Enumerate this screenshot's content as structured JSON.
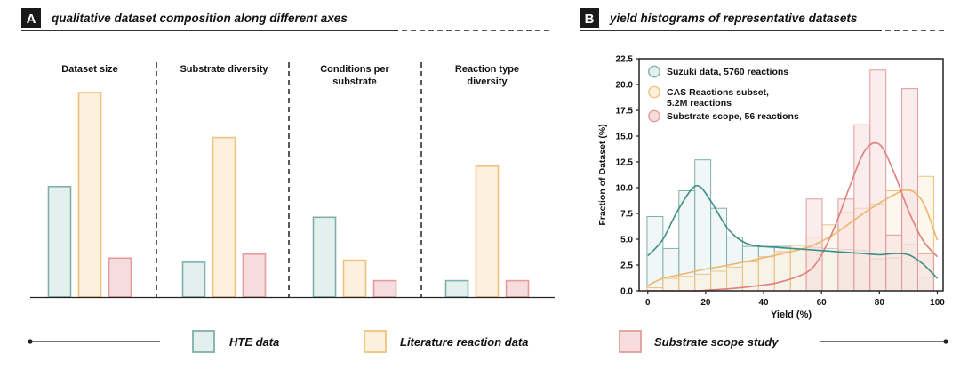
{
  "panel_a": {
    "letter": "A",
    "title": "qualitative dataset composition along different axes"
  },
  "panel_b": {
    "letter": "B",
    "title": "yield histograms of representative datasets"
  },
  "legend_bottom": {
    "hte": "HTE data",
    "literature": "Literature reaction data",
    "substrate": "Substrate scope study"
  },
  "colors": {
    "hte_fill": "#e3f0ee",
    "hte_edge": "#7fb0aa",
    "hte_line": "#3f8f86",
    "lit_fill": "#fdf0dc",
    "lit_edge": "#f0c27e",
    "lit_line": "#eeb56c",
    "sub_fill": "#f6dcdc",
    "sub_edge": "#e39b9b",
    "sub_line": "#e07f7f"
  },
  "chart_data": [
    {
      "type": "bar",
      "categories": [
        "Dataset size",
        "Substrate diversity",
        "Conditions per substrate",
        "Reaction type diversity"
      ],
      "category_lines": [
        [
          "Dataset size"
        ],
        [
          "Substrate diversity"
        ],
        [
          "Conditions per",
          "substrate"
        ],
        [
          "Reaction type",
          "diversity"
        ]
      ],
      "series": [
        {
          "name": "HTE data",
          "values": [
            0.54,
            0.17,
            0.39,
            0.08
          ]
        },
        {
          "name": "Literature reaction data",
          "values": [
            1.0,
            0.78,
            0.18,
            0.64
          ]
        },
        {
          "name": "Substrate scope study",
          "values": [
            0.19,
            0.21,
            0.08,
            0.08
          ]
        }
      ],
      "ylim": [
        0,
        1
      ]
    },
    {
      "type": "bar",
      "xlabel": "Yield (%)",
      "ylabel": "Fraction of Dataset (%)",
      "xlim": [
        -3,
        102
      ],
      "ylim": [
        0,
        22.5
      ],
      "xticks": [
        0,
        20,
        40,
        60,
        80,
        100
      ],
      "yticks": [
        "0.0",
        "2.5",
        "5.0",
        "7.5",
        "10.0",
        "12.5",
        "15.0",
        "17.5",
        "20.0",
        "22.5"
      ],
      "bin_width": 5.5,
      "bin_centers": [
        2.5,
        8,
        13.5,
        19,
        24.5,
        30,
        35.5,
        41,
        46.5,
        52,
        57.5,
        63,
        68.5,
        74,
        79.5,
        85,
        90.5,
        96
      ],
      "series": [
        {
          "name": "Suzuki data, 5760 reactions",
          "legend": [
            "Suzuki data, 5760 reactions"
          ],
          "values": [
            7.2,
            4.1,
            9.7,
            12.7,
            8.0,
            5.2,
            4.3,
            4.3,
            4.3,
            4.4,
            4.2,
            4.1,
            4.0,
            3.9,
            3.1,
            3.2,
            4.5,
            1.3
          ]
        },
        {
          "name": "CAS Reactions subset, 5.2M reactions",
          "legend": [
            "CAS Reactions subset,",
            "5.2M reactions"
          ],
          "values": [
            0.3,
            1.2,
            1.4,
            1.6,
            1.9,
            2.3,
            2.8,
            3.3,
            3.8,
            4.4,
            5.2,
            6.4,
            7.6,
            8.0,
            8.4,
            9.7,
            9.7,
            11.1
          ]
        },
        {
          "name": "Substrate scope, 56 reactions",
          "legend": [
            "Substrate scope, 56 reactions"
          ],
          "values": [
            0,
            0,
            0,
            0,
            0,
            0,
            0,
            0,
            0,
            0,
            8.9,
            0,
            8.9,
            16.1,
            21.4,
            5.4,
            19.6,
            3.6
          ]
        }
      ],
      "kde": {
        "x": [
          0,
          5,
          10,
          15,
          18,
          22,
          28,
          35,
          45,
          55,
          60,
          65,
          70,
          75,
          80,
          85,
          90,
          95,
          100
        ],
        "suzuki": [
          3.4,
          4.9,
          7.6,
          9.8,
          10.1,
          8.6,
          5.9,
          4.5,
          4.2,
          4.0,
          3.9,
          3.8,
          3.7,
          3.6,
          3.5,
          3.6,
          3.5,
          2.6,
          1.2
        ],
        "cas": [
          0.5,
          1.2,
          1.5,
          1.8,
          2.0,
          2.2,
          2.5,
          2.9,
          3.5,
          4.2,
          4.8,
          5.6,
          6.6,
          7.6,
          8.5,
          9.3,
          9.8,
          8.6,
          4.9
        ],
        "substrate": [
          0.0,
          0.0,
          0.0,
          0.0,
          0.0,
          0.1,
          0.2,
          0.4,
          0.8,
          1.8,
          3.5,
          6.5,
          10.3,
          13.6,
          14.2,
          11.5,
          7.8,
          4.9,
          3.3
        ]
      }
    }
  ]
}
